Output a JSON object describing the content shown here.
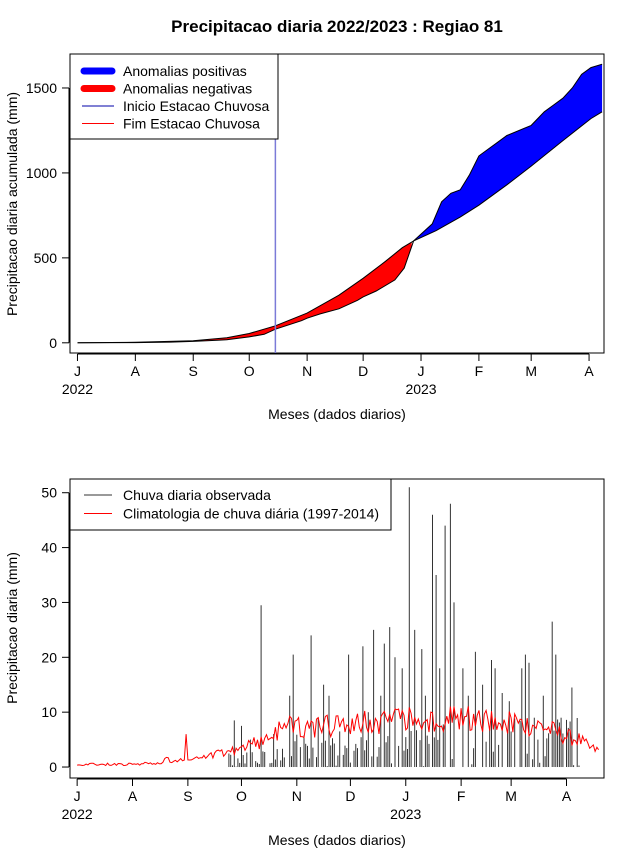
{
  "title": "Precipitacao diaria 2022/2023 : Regiao 81",
  "colors": {
    "positive": "#0000ff",
    "negative": "#ff0000",
    "onset_line": "#7b7bd8",
    "observed": "#333333",
    "climatology": "#ff0000"
  },
  "chart_data": [
    {
      "type": "area",
      "title": "Precipitacao diaria 2022/2023 : Regiao 81",
      "xlabel": "Meses (dados diarios)",
      "ylabel": "Precipitacao diaria acumulada (mm)",
      "x_unit": "days since 2022-07-01",
      "xlim": [
        -4,
        282
      ],
      "ylim": [
        -60,
        1700
      ],
      "x_ticks": [
        {
          "day": 0,
          "label": "J"
        },
        {
          "day": 31,
          "label": "A"
        },
        {
          "day": 62,
          "label": "S"
        },
        {
          "day": 92,
          "label": "O"
        },
        {
          "day": 123,
          "label": "N"
        },
        {
          "day": 153,
          "label": "D"
        },
        {
          "day": 184,
          "label": "J"
        },
        {
          "day": 215,
          "label": "F"
        },
        {
          "day": 243,
          "label": "M"
        },
        {
          "day": 274,
          "label": "A"
        }
      ],
      "year_labels": [
        {
          "day": 0,
          "label": "2022"
        },
        {
          "day": 184,
          "label": "2023"
        }
      ],
      "y_ticks": [
        0,
        500,
        1000,
        1500
      ],
      "legend": [
        {
          "label": "Anomalias positivas",
          "kind": "thick",
          "color": "#0000ff"
        },
        {
          "label": "Anomalias negativas",
          "kind": "thick",
          "color": "#ff0000"
        },
        {
          "label": "Inicio Estacao Chuvosa",
          "kind": "thin",
          "color": "#0000aa"
        },
        {
          "label": "Fim Estacao Chuvosa",
          "kind": "thin",
          "color": "#ff0000"
        }
      ],
      "legend_position": "top-left",
      "onset_day": 106,
      "series": [
        {
          "name": "Acumulado climatologico",
          "points": [
            [
              0,
              0
            ],
            [
              31,
              3
            ],
            [
              62,
              12
            ],
            [
              80,
              30
            ],
            [
              92,
              55
            ],
            [
              106,
              100
            ],
            [
              123,
              175
            ],
            [
              140,
              280
            ],
            [
              153,
              380
            ],
            [
              165,
              480
            ],
            [
              174,
              560
            ],
            [
              180,
              600
            ],
            [
              192,
              660
            ],
            [
              205,
              740
            ],
            [
              215,
              810
            ],
            [
              230,
              930
            ],
            [
              243,
              1040
            ],
            [
              260,
              1190
            ],
            [
              275,
              1320
            ],
            [
              281,
              1360
            ]
          ]
        },
        {
          "name": "Acumulado observado",
          "points": [
            [
              0,
              0
            ],
            [
              31,
              1
            ],
            [
              50,
              4
            ],
            [
              62,
              8
            ],
            [
              75,
              15
            ],
            [
              80,
              18
            ],
            [
              92,
              35
            ],
            [
              100,
              50
            ],
            [
              106,
              80
            ],
            [
              120,
              130
            ],
            [
              123,
              145
            ],
            [
              130,
              170
            ],
            [
              140,
              200
            ],
            [
              150,
              250
            ],
            [
              153,
              270
            ],
            [
              160,
              305
            ],
            [
              170,
              370
            ],
            [
              175,
              440
            ],
            [
              180,
              600
            ],
            [
              184,
              640
            ],
            [
              190,
              700
            ],
            [
              195,
              830
            ],
            [
              200,
              880
            ],
            [
              205,
              900
            ],
            [
              210,
              990
            ],
            [
              215,
              1100
            ],
            [
              220,
              1140
            ],
            [
              225,
              1180
            ],
            [
              230,
              1220
            ],
            [
              243,
              1280
            ],
            [
              250,
              1360
            ],
            [
              255,
              1400
            ],
            [
              260,
              1440
            ],
            [
              265,
              1500
            ],
            [
              270,
              1580
            ],
            [
              275,
              1620
            ],
            [
              281,
              1640
            ]
          ]
        }
      ]
    },
    {
      "type": "bar",
      "xlabel": "Meses (dados diarios)",
      "ylabel": "Precipitacao diaria (mm)",
      "x_unit": "days since 2022-07-01",
      "xlim": [
        -4,
        295
      ],
      "ylim": [
        -2,
        52.5
      ],
      "y_ticks": [
        0,
        10,
        20,
        30,
        40,
        50
      ],
      "legend": [
        {
          "label": "Chuva diaria observada",
          "color": "#333333"
        },
        {
          "label": "Climatologia de chuva diária (1997-2014)",
          "color": "#ff0000"
        }
      ],
      "legend_position": "top-left",
      "observed_peaks": [
        {
          "day": 88,
          "value": 8.5
        },
        {
          "day": 92,
          "value": 7.5
        },
        {
          "day": 97,
          "value": 5
        },
        {
          "day": 103,
          "value": 29.5
        },
        {
          "day": 110,
          "value": 6
        },
        {
          "day": 119,
          "value": 13
        },
        {
          "day": 121,
          "value": 20.5
        },
        {
          "day": 131,
          "value": 24
        },
        {
          "day": 135,
          "value": 9
        },
        {
          "day": 138,
          "value": 15
        },
        {
          "day": 141,
          "value": 13
        },
        {
          "day": 147,
          "value": 6.5
        },
        {
          "day": 152,
          "value": 20.5
        },
        {
          "day": 160,
          "value": 22
        },
        {
          "day": 163,
          "value": 10
        },
        {
          "day": 166,
          "value": 25
        },
        {
          "day": 170,
          "value": 13
        },
        {
          "day": 172,
          "value": 22.5
        },
        {
          "day": 175,
          "value": 25.5
        },
        {
          "day": 178,
          "value": 20
        },
        {
          "day": 182,
          "value": 18
        },
        {
          "day": 186,
          "value": 51
        },
        {
          "day": 189,
          "value": 25
        },
        {
          "day": 193,
          "value": 21.5
        },
        {
          "day": 195,
          "value": 13
        },
        {
          "day": 199,
          "value": 46
        },
        {
          "day": 201,
          "value": 35
        },
        {
          "day": 203,
          "value": 18
        },
        {
          "day": 206,
          "value": 44
        },
        {
          "day": 209,
          "value": 48
        },
        {
          "day": 211,
          "value": 30
        },
        {
          "day": 216,
          "value": 18
        },
        {
          "day": 219,
          "value": 13
        },
        {
          "day": 223,
          "value": 21
        },
        {
          "day": 227,
          "value": 15
        },
        {
          "day": 232,
          "value": 19.5
        },
        {
          "day": 234,
          "value": 18
        },
        {
          "day": 238,
          "value": 13.5
        },
        {
          "day": 242,
          "value": 12
        },
        {
          "day": 249,
          "value": 18
        },
        {
          "day": 251,
          "value": 20.5
        },
        {
          "day": 253,
          "value": 19
        },
        {
          "day": 256,
          "value": 9
        },
        {
          "day": 261,
          "value": 13
        },
        {
          "day": 266,
          "value": 26.5
        },
        {
          "day": 268,
          "value": 20.5
        },
        {
          "day": 271,
          "value": 9
        },
        {
          "day": 277,
          "value": 14.5
        }
      ],
      "climatology_daily_mean": [
        [
          0,
          0.5
        ],
        [
          31,
          0.5
        ],
        [
          48,
          0.8
        ],
        [
          50,
          2
        ],
        [
          52,
          0.8
        ],
        [
          62,
          1.5
        ],
        [
          68,
          1.5
        ],
        [
          92,
          3.5
        ],
        [
          106,
          5
        ],
        [
          115,
          7.5
        ],
        [
          123,
          7
        ],
        [
          153,
          8
        ],
        [
          184,
          8.5
        ],
        [
          215,
          9
        ],
        [
          243,
          8
        ],
        [
          260,
          7.5
        ],
        [
          274,
          5.5
        ],
        [
          281,
          5
        ],
        [
          287,
          3.5
        ],
        [
          292,
          3
        ]
      ],
      "climatology_spikes": [
        {
          "day": 61,
          "value": 6
        }
      ]
    }
  ]
}
